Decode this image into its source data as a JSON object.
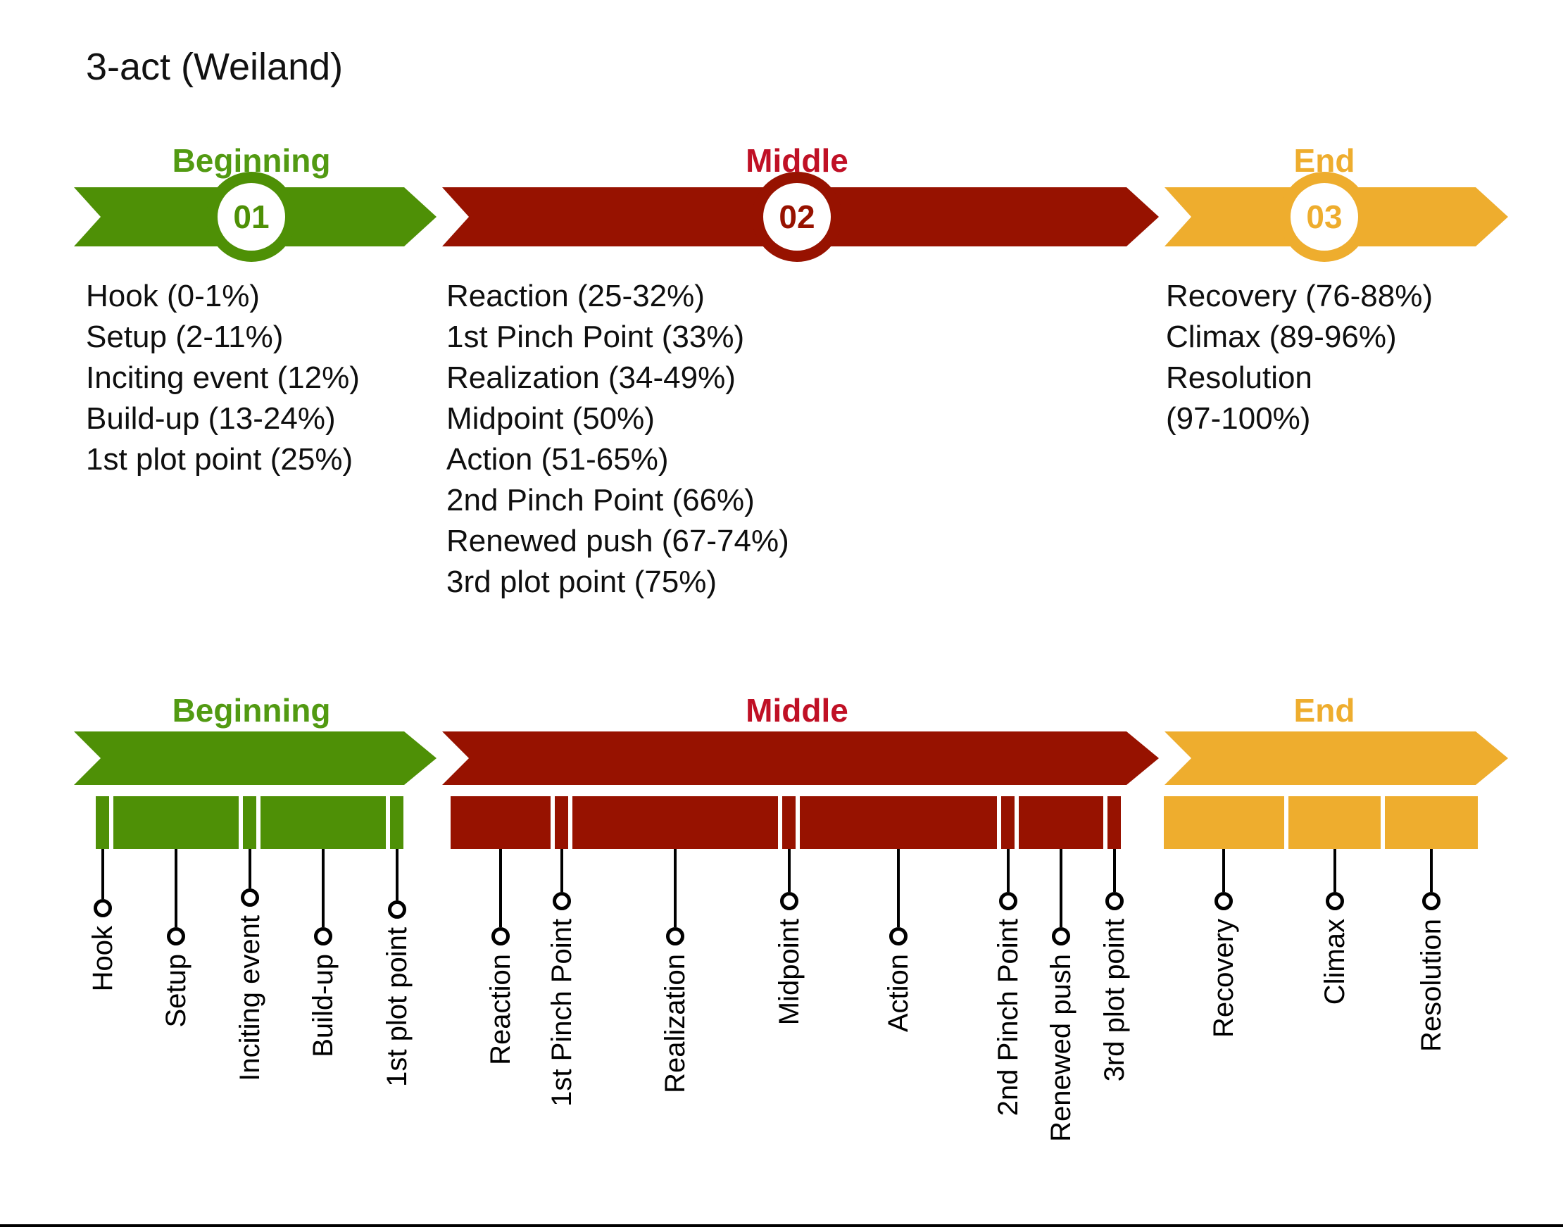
{
  "title": "3-act (Weiland)",
  "acts": [
    {
      "label": "Beginning",
      "number": "01",
      "color": "#4e9006",
      "label_color": "#529a12",
      "details": [
        "Hook (0-1%)",
        "Setup (2-11%)",
        "Inciting event (12%)",
        "Build-up (13-24%)",
        "1st plot point (25%)"
      ],
      "segments": [
        {
          "name": "Hook",
          "range": "0-1%",
          "point": true,
          "drop": 71,
          "w": 0
        },
        {
          "name": "Setup",
          "range": "2-11%",
          "point": false,
          "drop": 111,
          "w": 1
        },
        {
          "name": "Inciting event",
          "range": "12%",
          "point": true,
          "drop": 56,
          "w": 0
        },
        {
          "name": "Build-up",
          "range": "13-24%",
          "point": false,
          "drop": 111,
          "w": 1
        },
        {
          "name": "1st plot point",
          "range": "25%",
          "point": true,
          "drop": 73,
          "w": 0
        }
      ]
    },
    {
      "label": "Middle",
      "number": "02",
      "color": "#971200",
      "label_color": "#c01025",
      "details": [
        "Reaction (25-32%)",
        "1st Pinch Point (33%)",
        "Realization (34-49%)",
        "Midpoint (50%)",
        "Action (51-65%)",
        "2nd Pinch Point (66%)",
        "Renewed push (67-74%)",
        "3rd plot point (75%)"
      ],
      "segments": [
        {
          "name": "Reaction",
          "range": "25-32%",
          "point": false,
          "drop": 111,
          "w": 1.0
        },
        {
          "name": "1st Pinch Point",
          "range": "33%",
          "point": true,
          "drop": 61,
          "w": 0
        },
        {
          "name": "Realization",
          "range": "34-49%",
          "point": false,
          "drop": 111,
          "w": 2.05
        },
        {
          "name": "Midpoint",
          "range": "50%",
          "point": true,
          "drop": 61,
          "w": 0
        },
        {
          "name": "Action",
          "range": "51-65%",
          "point": false,
          "drop": 111,
          "w": 1.97
        },
        {
          "name": "2nd Pinch Point",
          "range": "66%",
          "point": true,
          "drop": 61,
          "w": 0
        },
        {
          "name": "Renewed push",
          "range": "67-74%",
          "point": false,
          "drop": 111,
          "w": 0.84
        },
        {
          "name": "3rd plot point",
          "range": "75%",
          "point": true,
          "drop": 61,
          "w": 0
        }
      ]
    },
    {
      "label": "End",
      "number": "03",
      "color": "#eead2e",
      "label_color": "#eead2e",
      "details": [
        "Recovery (76-88%)",
        "Climax (89-96%)",
        "Resolution",
        "(97-100%)"
      ],
      "segments": [
        {
          "name": "Recovery",
          "range": "76-88%",
          "point": false,
          "drop": 61,
          "w": 1.3
        },
        {
          "name": "Climax",
          "range": "89-96%",
          "point": false,
          "drop": 61,
          "w": 1.0
        },
        {
          "name": "Resolution",
          "range": "97-100%",
          "point": false,
          "drop": 61,
          "w": 1.0
        }
      ]
    }
  ]
}
